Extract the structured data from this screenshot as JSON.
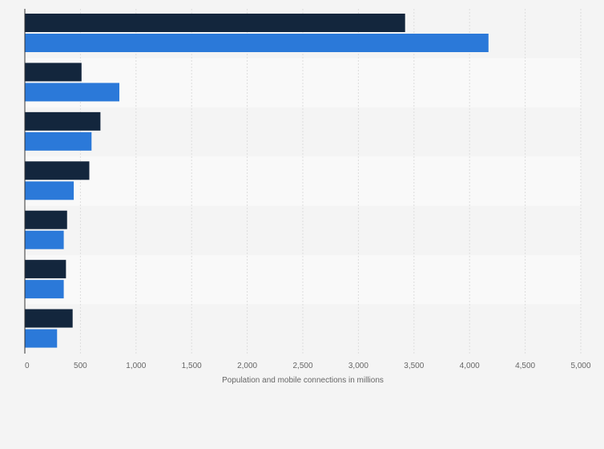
{
  "chart_data": {
    "type": "bar",
    "orientation": "horizontal",
    "categories": [
      "",
      "",
      "",
      "",
      "",
      "",
      ""
    ],
    "series": [
      {
        "values": [
          3420,
          510,
          680,
          580,
          380,
          370,
          430
        ]
      },
      {
        "values": [
          4170,
          850,
          600,
          440,
          350,
          350,
          290
        ]
      }
    ],
    "xlabel": "Population and mobile connections in millions",
    "ylabel": "",
    "xlim": [
      0,
      5000
    ],
    "xticks": [
      0,
      500,
      1000,
      1500,
      2000,
      2500,
      3000,
      3500,
      4000,
      4500,
      5000
    ],
    "xtick_labels": [
      "0",
      "500",
      "1,000",
      "1,500",
      "2,000",
      "2,500",
      "3,000",
      "3,500",
      "4,000",
      "4,500",
      "5,000"
    ],
    "grid": true,
    "legend": "none",
    "colors": {
      "series_1": "#13263d",
      "series_2": "#2b79d9",
      "band_light": "#f9f9f9",
      "band_dark": "#f4f4f4",
      "grid": "#dddddd",
      "axis": "#333333",
      "text": "#666666"
    }
  }
}
